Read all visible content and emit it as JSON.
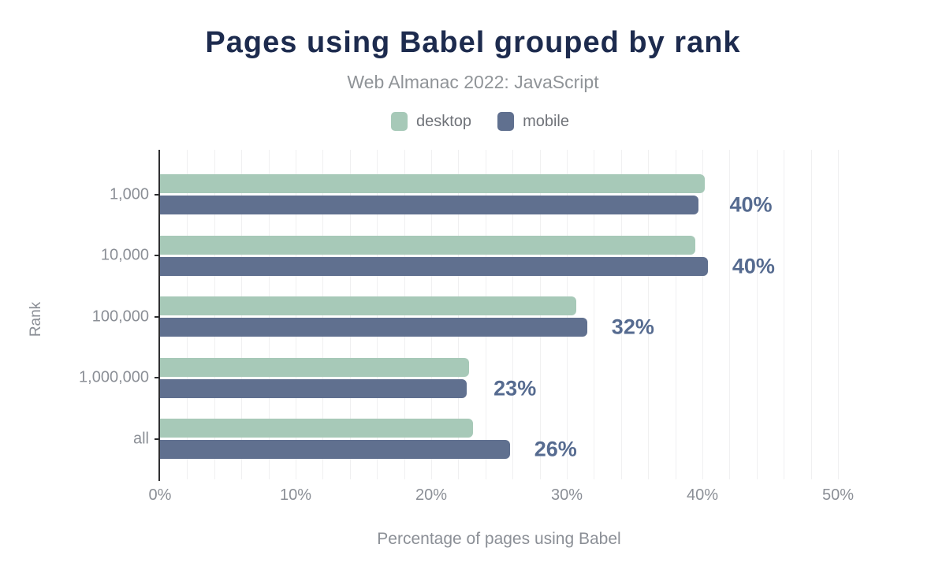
{
  "header": {
    "title": "Pages using Babel grouped by rank",
    "subtitle": "Web Almanac 2022: JavaScript"
  },
  "legend": [
    {
      "label": "desktop",
      "color": "#a7c9b8"
    },
    {
      "label": "mobile",
      "color": "#60708f"
    }
  ],
  "colors": {
    "title": "#1d2b4e",
    "subtitle": "#909498",
    "desktop_bar": "#a7c9b8",
    "mobile_bar": "#60708f",
    "value_label": "#566b90",
    "axis_text": "#8b8f96",
    "gridline": "#f0f0f1",
    "axis_line": "#2e2e30",
    "background": "#ffffff"
  },
  "chart_data": {
    "type": "bar",
    "orientation": "horizontal",
    "title": "Pages using Babel grouped by rank",
    "subtitle": "Web Almanac 2022: JavaScript",
    "categories": [
      "1,000",
      "10,000",
      "100,000",
      "1,000,000",
      "all"
    ],
    "series": [
      {
        "name": "desktop",
        "color": "#a7c9b8",
        "values": [
          40.2,
          39.5,
          30.7,
          22.8,
          23.1
        ]
      },
      {
        "name": "mobile",
        "color": "#60708f",
        "values": [
          39.7,
          40.4,
          31.5,
          22.6,
          25.8
        ]
      }
    ],
    "annotations": [
      "40%",
      "40%",
      "32%",
      "23%",
      "26%"
    ],
    "xlabel": "Percentage of pages using Babel",
    "ylabel": "Rank",
    "xlim": [
      0,
      50
    ],
    "xticks": [
      {
        "label": "0%",
        "value": 0
      },
      {
        "label": "10%",
        "value": 10
      },
      {
        "label": "20%",
        "value": 20
      },
      {
        "label": "30%",
        "value": 30
      },
      {
        "label": "40%",
        "value": 40
      },
      {
        "label": "50%",
        "value": 50
      }
    ],
    "grid_step_pct": 2,
    "grid": true,
    "legend_position": "top"
  }
}
